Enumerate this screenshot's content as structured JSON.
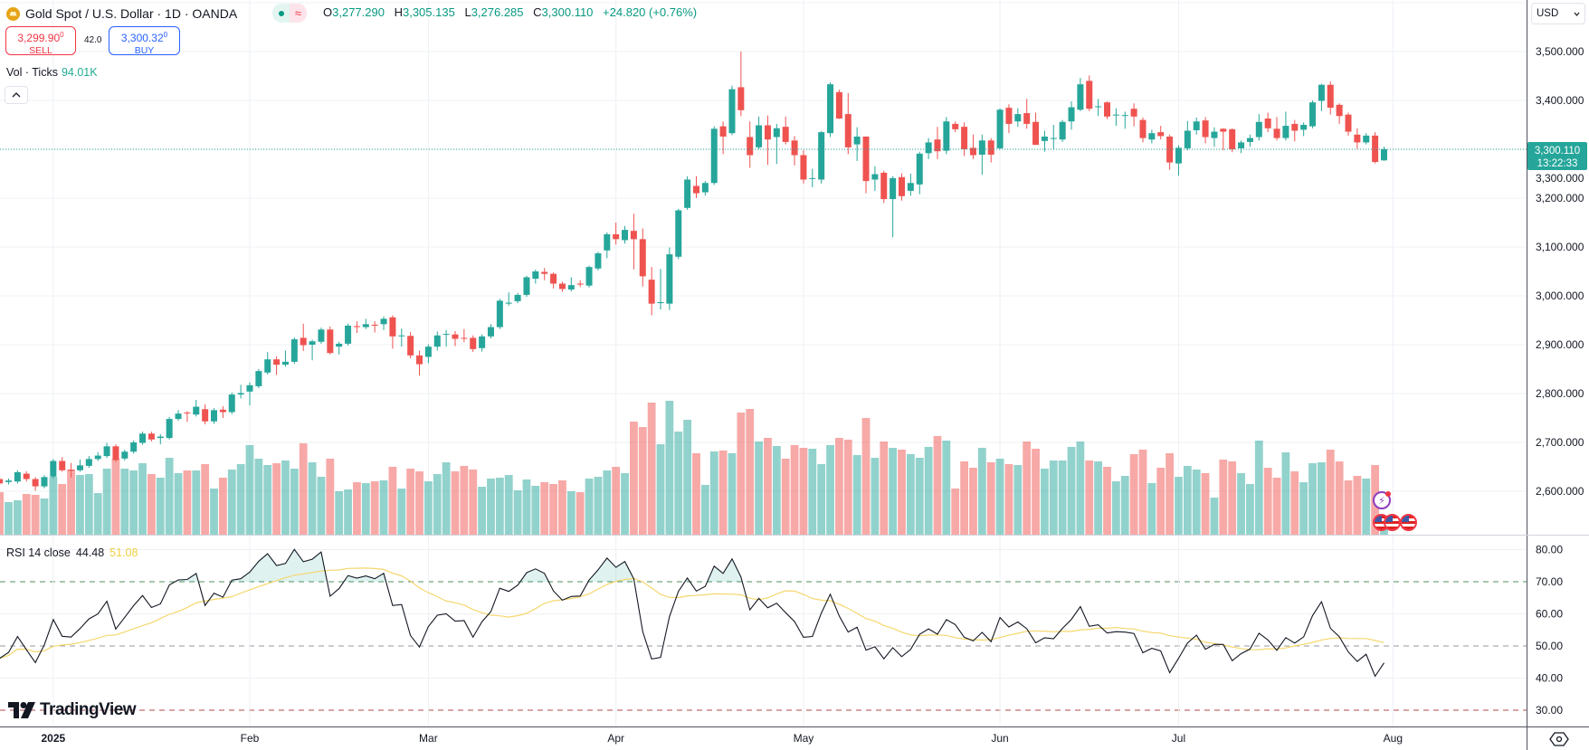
{
  "header": {
    "symbol_title": "Gold Spot / U.S. Dollar · 1D · OANDA",
    "market_status_symbol": "≈",
    "ohlc": {
      "o_label": "O",
      "o": "3,277.290",
      "h_label": "H",
      "h": "3,305.135",
      "l_label": "L",
      "l": "3,276.285",
      "c_label": "C",
      "c": "3,300.110",
      "change": "+24.820 (+0.76%)"
    },
    "sell": {
      "price": "3,299.90",
      "price_sup": "0",
      "label": "SELL"
    },
    "buy": {
      "price": "3,300.32",
      "price_sup": "0",
      "label": "BUY"
    },
    "spread": "42.0",
    "volume": {
      "label": "Vol · Ticks",
      "value": "94.01K"
    },
    "collapse_icon": "chevron-up-icon"
  },
  "rsi_legend": {
    "label": "RSI 14 close",
    "rsi": "44.48",
    "ma": "51.08"
  },
  "currency": "USD",
  "last_price_tag": {
    "price": "3,300.110",
    "countdown": "13:22:33"
  },
  "branding": "TradingView",
  "colors": {
    "up": "#26a69a",
    "down": "#ef5350",
    "rsi": "#131722",
    "rsi_ma": "#f5d76e",
    "text_up": "#089981",
    "sell": "#f23645",
    "buy": "#2962ff"
  },
  "chart_data": {
    "type": "candlestick",
    "title": "Gold Spot / U.S. Dollar · 1D · OANDA",
    "y_ticks": [
      "3,500.000",
      "3,400.000",
      "3,300.000",
      "3,200.000",
      "3,100.000",
      "3,000.000",
      "2,900.000",
      "2,800.000",
      "2,700.000",
      "2,600.000"
    ],
    "y_tick_values": [
      3500,
      3400,
      3300,
      3200,
      3100,
      3000,
      2900,
      2800,
      2700,
      2600
    ],
    "ylim": [
      2534,
      3606
    ],
    "rsi_ticks": [
      "80.00",
      "70.00",
      "60.00",
      "50.00",
      "40.00",
      "30.00"
    ],
    "rsi_tick_values": [
      80,
      70,
      60,
      50,
      40,
      30
    ],
    "rsi_levels": {
      "upper": 70,
      "middle": 50,
      "lower": 30
    },
    "x_labels": [
      {
        "label": "2025",
        "bar": 6
      },
      {
        "label": "Feb",
        "bar": 28
      },
      {
        "label": "Mar",
        "bar": 48
      },
      {
        "label": "Apr",
        "bar": 69
      },
      {
        "label": "May",
        "bar": 90
      },
      {
        "label": "Jun",
        "bar": 112
      },
      {
        "label": "Jul",
        "bar": 132
      },
      {
        "label": "Aug",
        "bar": 156
      }
    ],
    "last_close": 3300.11,
    "ohlc": [
      [
        2625,
        2630,
        2612,
        2616
      ],
      [
        2619,
        2626,
        2614,
        2622
      ],
      [
        2620,
        2643,
        2616,
        2639
      ],
      [
        2636,
        2641,
        2620,
        2625
      ],
      [
        2625,
        2629,
        2601,
        2610
      ],
      [
        2610,
        2633,
        2606,
        2629
      ],
      [
        2630,
        2666,
        2626,
        2662
      ],
      [
        2662,
        2670,
        2640,
        2643
      ],
      [
        2644,
        2658,
        2628,
        2642
      ],
      [
        2643,
        2665,
        2640,
        2653
      ],
      [
        2652,
        2672,
        2648,
        2666
      ],
      [
        2666,
        2680,
        2662,
        2673
      ],
      [
        2672,
        2699,
        2668,
        2692
      ],
      [
        2692,
        2696,
        2660,
        2664
      ],
      [
        2667,
        2685,
        2663,
        2681
      ],
      [
        2681,
        2704,
        2677,
        2700
      ],
      [
        2699,
        2722,
        2695,
        2718
      ],
      [
        2718,
        2722,
        2702,
        2706
      ],
      [
        2709,
        2717,
        2696,
        2712
      ],
      [
        2709,
        2752,
        2706,
        2748
      ],
      [
        2748,
        2766,
        2744,
        2759
      ],
      [
        2761,
        2764,
        2742,
        2760
      ],
      [
        2757,
        2787,
        2753,
        2773
      ],
      [
        2768,
        2778,
        2737,
        2743
      ],
      [
        2743,
        2770,
        2738,
        2766
      ],
      [
        2767,
        2774,
        2750,
        2762
      ],
      [
        2762,
        2802,
        2758,
        2798
      ],
      [
        2798,
        2818,
        2790,
        2801
      ],
      [
        2804,
        2823,
        2776,
        2817
      ],
      [
        2815,
        2850,
        2811,
        2846
      ],
      [
        2843,
        2885,
        2839,
        2870
      ],
      [
        2870,
        2876,
        2838,
        2859
      ],
      [
        2859,
        2888,
        2855,
        2865
      ],
      [
        2865,
        2915,
        2861,
        2911
      ],
      [
        2914,
        2943,
        2887,
        2899
      ],
      [
        2900,
        2910,
        2868,
        2907
      ],
      [
        2906,
        2935,
        2902,
        2931
      ],
      [
        2931,
        2937,
        2880,
        2883
      ],
      [
        2896,
        2906,
        2880,
        2902
      ],
      [
        2902,
        2943,
        2898,
        2939
      ],
      [
        2938,
        2948,
        2924,
        2936
      ],
      [
        2936,
        2953,
        2932,
        2942
      ],
      [
        2941,
        2948,
        2925,
        2939
      ],
      [
        2942,
        2958,
        2930,
        2953
      ],
      [
        2956,
        2960,
        2892,
        2917
      ],
      [
        2918,
        2933,
        2896,
        2919
      ],
      [
        2918,
        2926,
        2872,
        2878
      ],
      [
        2878,
        2888,
        2837,
        2860
      ],
      [
        2875,
        2901,
        2862,
        2896
      ],
      [
        2896,
        2927,
        2888,
        2919
      ],
      [
        2921,
        2930,
        2896,
        2922
      ],
      [
        2921,
        2928,
        2897,
        2912
      ],
      [
        2914,
        2932,
        2905,
        2913
      ],
      [
        2914,
        2919,
        2885,
        2891
      ],
      [
        2893,
        2921,
        2886,
        2917
      ],
      [
        2917,
        2942,
        2913,
        2936
      ],
      [
        2936,
        2994,
        2932,
        2990
      ],
      [
        2984,
        3007,
        2980,
        2986
      ],
      [
        2989,
        3006,
        2985,
        3002
      ],
      [
        3002,
        3041,
        2998,
        3038
      ],
      [
        3035,
        3054,
        3025,
        3050
      ],
      [
        3049,
        3057,
        3032,
        3045
      ],
      [
        3045,
        3048,
        3015,
        3025
      ],
      [
        3025,
        3029,
        3008,
        3014
      ],
      [
        3013,
        3038,
        3009,
        3022
      ],
      [
        3025,
        3032,
        3018,
        3023
      ],
      [
        3021,
        3062,
        3017,
        3059
      ],
      [
        3056,
        3090,
        3052,
        3087
      ],
      [
        3093,
        3130,
        3077,
        3126
      ],
      [
        3126,
        3150,
        3105,
        3116
      ],
      [
        3114,
        3143,
        3107,
        3135
      ],
      [
        3133,
        3168,
        3054,
        3116
      ],
      [
        3116,
        3138,
        3019,
        3040
      ],
      [
        3033,
        3059,
        2960,
        2984
      ],
      [
        2985,
        3055,
        2972,
        2987
      ],
      [
        2984,
        3099,
        2971,
        3085
      ],
      [
        3080,
        3178,
        3075,
        3175
      ],
      [
        3180,
        3245,
        3176,
        3238
      ],
      [
        3225,
        3245,
        3200,
        3210
      ],
      [
        3212,
        3235,
        3205,
        3231
      ],
      [
        3231,
        3347,
        3227,
        3342
      ],
      [
        3347,
        3357,
        3290,
        3326
      ],
      [
        3333,
        3430,
        3329,
        3423
      ],
      [
        3427,
        3500,
        3368,
        3380
      ],
      [
        3325,
        3357,
        3262,
        3288
      ],
      [
        3304,
        3367,
        3300,
        3349
      ],
      [
        3349,
        3369,
        3268,
        3320
      ],
      [
        3325,
        3352,
        3270,
        3343
      ],
      [
        3346,
        3367,
        3310,
        3315
      ],
      [
        3318,
        3327,
        3267,
        3288
      ],
      [
        3288,
        3298,
        3230,
        3238
      ],
      [
        3241,
        3260,
        3222,
        3241
      ],
      [
        3238,
        3337,
        3230,
        3335
      ],
      [
        3333,
        3437,
        3325,
        3433
      ],
      [
        3417,
        3422,
        3362,
        3363
      ],
      [
        3372,
        3415,
        3290,
        3304
      ],
      [
        3310,
        3345,
        3276,
        3326
      ],
      [
        3326,
        3326,
        3210,
        3235
      ],
      [
        3238,
        3265,
        3215,
        3249
      ],
      [
        3252,
        3256,
        3190,
        3198
      ],
      [
        3198,
        3245,
        3120,
        3241
      ],
      [
        3243,
        3251,
        3195,
        3204
      ],
      [
        3215,
        3250,
        3205,
        3231
      ],
      [
        3228,
        3295,
        3208,
        3291
      ],
      [
        3292,
        3323,
        3280,
        3314
      ],
      [
        3320,
        3346,
        3280,
        3296
      ],
      [
        3297,
        3366,
        3290,
        3357
      ],
      [
        3352,
        3357,
        3335,
        3341
      ],
      [
        3346,
        3355,
        3286,
        3300
      ],
      [
        3303,
        3330,
        3280,
        3288
      ],
      [
        3289,
        3330,
        3248,
        3318
      ],
      [
        3318,
        3323,
        3273,
        3289
      ],
      [
        3302,
        3384,
        3300,
        3381
      ],
      [
        3385,
        3392,
        3333,
        3352
      ],
      [
        3357,
        3384,
        3346,
        3372
      ],
      [
        3374,
        3403,
        3342,
        3352
      ],
      [
        3356,
        3375,
        3309,
        3309
      ],
      [
        3317,
        3338,
        3295,
        3326
      ],
      [
        3323,
        3350,
        3300,
        3323
      ],
      [
        3320,
        3360,
        3315,
        3356
      ],
      [
        3357,
        3398,
        3340,
        3386
      ],
      [
        3381,
        3446,
        3378,
        3433
      ],
      [
        3440,
        3451,
        3378,
        3383
      ],
      [
        3388,
        3403,
        3368,
        3388
      ],
      [
        3396,
        3398,
        3362,
        3367
      ],
      [
        3371,
        3384,
        3348,
        3371
      ],
      [
        3370,
        3377,
        3342,
        3370
      ],
      [
        3383,
        3394,
        3347,
        3367
      ],
      [
        3360,
        3365,
        3314,
        3323
      ],
      [
        3320,
        3340,
        3312,
        3333
      ],
      [
        3335,
        3348,
        3320,
        3327
      ],
      [
        3326,
        3330,
        3258,
        3273
      ],
      [
        3271,
        3308,
        3246,
        3303
      ],
      [
        3302,
        3358,
        3298,
        3338
      ],
      [
        3339,
        3365,
        3330,
        3357
      ],
      [
        3359,
        3366,
        3312,
        3325
      ],
      [
        3323,
        3345,
        3305,
        3336
      ],
      [
        3342,
        3343,
        3298,
        3336
      ],
      [
        3341,
        3343,
        3294,
        3300
      ],
      [
        3302,
        3318,
        3292,
        3314
      ],
      [
        3315,
        3330,
        3305,
        3323
      ],
      [
        3325,
        3372,
        3318,
        3356
      ],
      [
        3363,
        3375,
        3335,
        3343
      ],
      [
        3342,
        3366,
        3318,
        3323
      ],
      [
        3323,
        3377,
        3318,
        3348
      ],
      [
        3352,
        3360,
        3316,
        3338
      ],
      [
        3340,
        3355,
        3327,
        3350
      ],
      [
        3347,
        3400,
        3343,
        3396
      ],
      [
        3399,
        3434,
        3378,
        3432
      ],
      [
        3432,
        3439,
        3371,
        3385
      ],
      [
        3391,
        3394,
        3352,
        3368
      ],
      [
        3371,
        3375,
        3328,
        3336
      ],
      [
        3330,
        3343,
        3301,
        3314
      ],
      [
        3314,
        3333,
        3310,
        3328
      ],
      [
        3328,
        3335,
        3271,
        3274
      ],
      [
        3277.29,
        3305.135,
        3276.285,
        3300.11
      ]
    ],
    "volume_k": [
      235,
      180,
      190,
      225,
      220,
      200,
      320,
      280,
      360,
      330,
      335,
      230,
      365,
      420,
      365,
      355,
      395,
      335,
      315,
      425,
      340,
      355,
      355,
      390,
      255,
      315,
      360,
      390,
      495,
      420,
      385,
      395,
      410,
      365,
      505,
      400,
      320,
      420,
      240,
      250,
      290,
      285,
      295,
      300,
      375,
      255,
      365,
      350,
      295,
      335,
      400,
      350,
      380,
      360,
      265,
      310,
      315,
      330,
      245,
      305,
      270,
      290,
      280,
      300,
      240,
      235,
      310,
      320,
      355,
      375,
      340,
      625,
      595,
      730,
      500,
      740,
      570,
      635,
      450,
      275,
      460,
      465,
      450,
      675,
      695,
      515,
      535,
      490,
      420,
      495,
      480,
      475,
      390,
      495,
      535,
      525,
      440,
      645,
      425,
      515,
      480,
      470,
      445,
      425,
      485,
      545,
      520,
      255,
      405,
      370,
      480,
      400,
      420,
      390,
      385,
      515,
      475,
      365,
      410,
      410,
      485,
      515,
      410,
      405,
      375,
      295,
      325,
      445,
      470,
      285,
      370,
      450,
      320,
      380,
      360,
      340,
      205,
      415,
      405,
      340,
      280,
      520,
      370,
      315,
      455,
      350,
      290,
      395,
      400,
      470,
      405,
      300,
      325,
      310,
      385,
      94.01
    ],
    "rsi_period": 14,
    "rsi_ma_period": 14
  }
}
